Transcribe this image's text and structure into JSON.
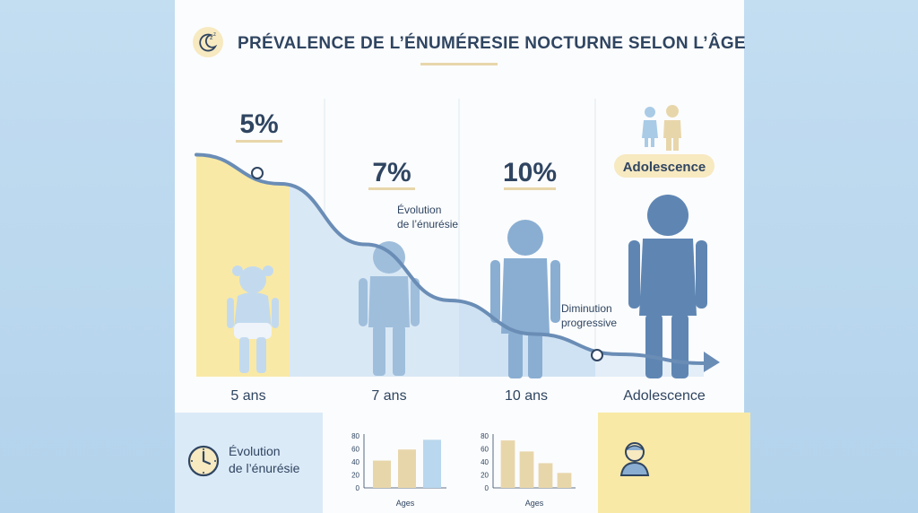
{
  "header": {
    "title": "PRÉVALENCE DE L’ÉNUMÉRESIE NOCTURNE SELON L’ÂGE"
  },
  "colors": {
    "navy": "#2f4561",
    "curve": "#6a8db6",
    "yellow": "#f9e9a6",
    "lightblue": "#cfe2f3",
    "silhouette": "#8db0d2",
    "silhouette_dark": "#5f86b3",
    "beige": "#e8d6ab"
  },
  "chart_data": [
    {
      "type": "area",
      "title": "PRÉVALENCE DE L’ÉNUMÉRESIE NOCTURNE SELON L’ÂGE",
      "categories": [
        "5 ans",
        "7 ans",
        "10 ans",
        "Adolescence"
      ],
      "percent_labels": [
        "5%",
        "7%",
        "10%"
      ],
      "annotations": {
        "evolution": [
          "Évolution",
          "de l’énurésie"
        ],
        "diminution": [
          "Diminution",
          "progressive"
        ],
        "adolescence_badge": "Adolescence"
      },
      "curve_values": [
        95,
        82,
        55,
        30,
        15,
        6,
        2
      ],
      "ylim": [
        0,
        100
      ],
      "grid": false
    },
    {
      "type": "bar",
      "xlabel": "Ages",
      "yticks": [
        "0",
        "20",
        "40",
        "60",
        "80"
      ],
      "ylim": [
        0,
        80
      ],
      "values": [
        42,
        59,
        74
      ],
      "colors": [
        "#e8d6ab",
        "#e8d6ab",
        "#b9d7ee"
      ]
    },
    {
      "type": "bar",
      "xlabel": "Ages",
      "yticks": [
        "0",
        "20",
        "40",
        "60",
        "80"
      ],
      "ylim": [
        0,
        80
      ],
      "values": [
        73,
        56,
        38,
        23
      ],
      "colors": [
        "#e8d6ab",
        "#e8d6ab",
        "#e8d6ab",
        "#e8d6ab"
      ]
    }
  ],
  "bottom": {
    "evolution_label": [
      "Évolution",
      "de l’énurésie"
    ],
    "clock_icon": "clock-icon",
    "person_icon": "person-icon"
  }
}
